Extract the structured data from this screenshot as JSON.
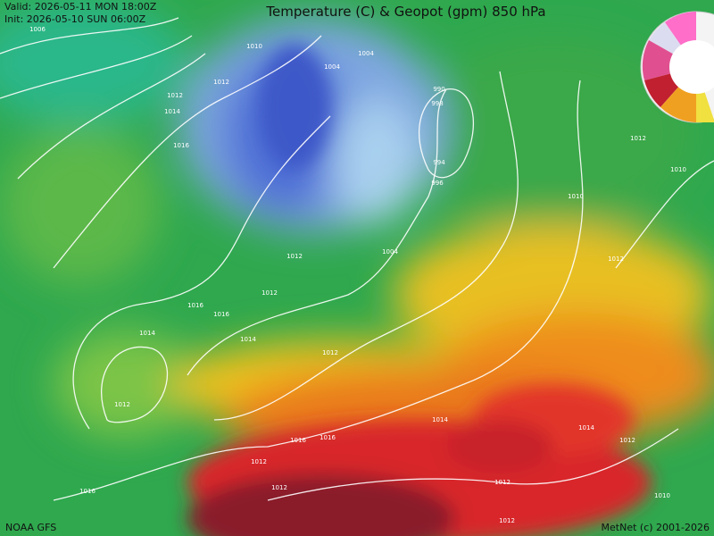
{
  "header": {
    "valid": "Valid: 2026-05-11 MON 18:00Z",
    "init": "Init:   2026-05-10 SUN 06:00Z",
    "title": "Temperature (C) & Geopot (gpm) 850 hPa"
  },
  "footer": {
    "source": "NOAA GFS",
    "credit": "MetNet (c) 2001-2026"
  },
  "contour_labels": [
    1006,
    1010,
    1004,
    1004,
    1012,
    1014,
    1016,
    1012,
    990,
    998,
    994,
    996,
    1012,
    1010,
    1010,
    1012,
    1012,
    1004,
    1012,
    1016,
    1014,
    1016,
    1014,
    1012,
    1012,
    1014,
    1016,
    1016,
    1012,
    1012,
    1012,
    1014,
    1016,
    1012,
    1010,
    1012
  ]
}
